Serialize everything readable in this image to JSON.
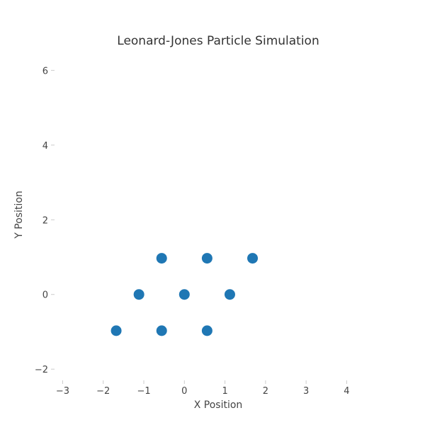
{
  "chart_data": {
    "type": "scatter",
    "title": "Leonard-Jones Particle Simulation",
    "xlabel": "X Position",
    "ylabel": "Y Position",
    "xlim": [
      -3.2,
      4.9
    ],
    "ylim": [
      -2.3,
      6.5
    ],
    "x_ticks": [
      -3,
      -2,
      -1,
      0,
      1,
      2,
      3,
      4
    ],
    "x_tick_labels": [
      "−3",
      "−2",
      "−1",
      "0",
      "1",
      "2",
      "3",
      "4"
    ],
    "y_ticks": [
      -2,
      0,
      2,
      4,
      6
    ],
    "y_tick_labels": [
      "−2",
      "0",
      "2",
      "4",
      "6"
    ],
    "grid": false,
    "color": "#1f77b4",
    "series": [
      {
        "points": [
          {
            "x": -0.56,
            "y": 0.97
          },
          {
            "x": 0.56,
            "y": 0.97
          },
          {
            "x": 1.68,
            "y": 0.97
          },
          {
            "x": -1.12,
            "y": 0.0
          },
          {
            "x": 0.0,
            "y": 0.0
          },
          {
            "x": 1.12,
            "y": 0.0
          },
          {
            "x": -1.68,
            "y": -0.97
          },
          {
            "x": -0.56,
            "y": -0.97
          },
          {
            "x": 0.56,
            "y": -0.97
          }
        ]
      }
    ]
  }
}
